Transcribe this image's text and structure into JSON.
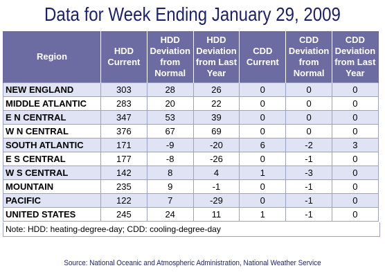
{
  "title": "Data for Week Ending January 29, 2009",
  "table": {
    "headers": [
      "Region",
      "HDD\nCurrent",
      "HDD\nDeviation\nfrom\nNormal",
      "HDD\nDeviation\nfrom Last\nYear",
      "CDD\nCurrent",
      "CDD\nDeviation\nfrom\nNormal",
      "CDD\nDeviation\nfrom Last\nYear"
    ],
    "rows": [
      [
        "NEW ENGLAND",
        "303",
        "28",
        "26",
        "0",
        "0",
        "0"
      ],
      [
        "MIDDLE ATLANTIC",
        "283",
        "20",
        "22",
        "0",
        "0",
        "0"
      ],
      [
        "E N CENTRAL",
        "347",
        "53",
        "39",
        "0",
        "0",
        "0"
      ],
      [
        "W N CENTRAL",
        "376",
        "67",
        "69",
        "0",
        "0",
        "0"
      ],
      [
        "SOUTH ATLANTIC",
        "171",
        "-9",
        "-20",
        "6",
        "-2",
        "3"
      ],
      [
        "E S CENTRAL",
        "177",
        "-8",
        "-26",
        "0",
        "-1",
        "0"
      ],
      [
        "W S CENTRAL",
        "142",
        "8",
        "4",
        "1",
        "-3",
        "0"
      ],
      [
        "MOUNTAIN",
        "235",
        "9",
        "-1",
        "0",
        "-1",
        "0"
      ],
      [
        "PACIFIC",
        "122",
        "7",
        "-29",
        "0",
        "-1",
        "0"
      ],
      [
        "UNITED STATES",
        "245",
        "24",
        "11",
        "1",
        "-1",
        "0"
      ]
    ]
  },
  "note": "Note: HDD: heating-degree-day; CDD: cooling-degree-day",
  "source": "Source:  National Oceanic and Atmospheric Administration, National Weather Service",
  "colors": {
    "title": "#1a1f6e",
    "header_bg": "#6c6ca3",
    "header_text": "#ffffff",
    "alt_row_bg": "#dfe3f4",
    "border": "#9aa0c6"
  }
}
